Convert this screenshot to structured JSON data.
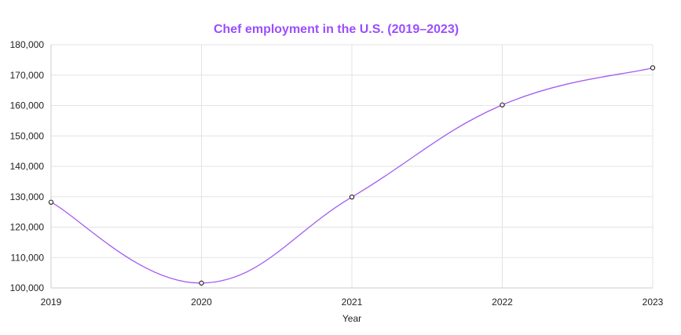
{
  "chart_data": {
    "type": "line",
    "title": "Chef employment in the U.S. (2019–2023)",
    "xlabel": "Year",
    "ylabel": "",
    "categories": [
      "2019",
      "2020",
      "2021",
      "2022",
      "2023"
    ],
    "y_tick_labels": [
      "100,000",
      "110,000",
      "120,000",
      "130,000",
      "140,000",
      "150,000",
      "160,000",
      "170,000",
      "180,000"
    ],
    "ylim": [
      100000,
      180000
    ],
    "series": [
      {
        "values": [
          128200,
          101600,
          129900,
          160200,
          172400
        ]
      }
    ],
    "grid": true,
    "legend": "none",
    "colors": {
      "title": "#9b4dff",
      "line": "#a35cf0",
      "point_stroke": "#1a1a1a",
      "point_fill": "#ffffff",
      "grid": "#e3e3e3",
      "axis": "#cccccc"
    }
  }
}
